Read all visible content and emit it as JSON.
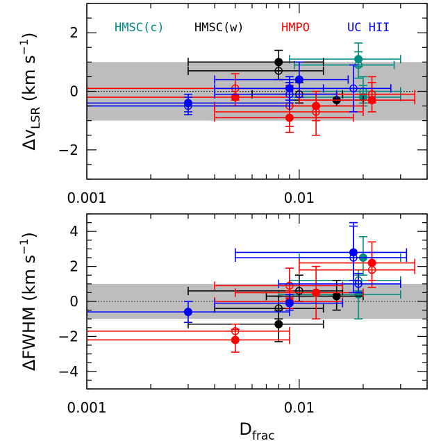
{
  "chart_data": [
    {
      "type": "scatter",
      "panel": "top",
      "xlabel": "",
      "ylabel": "ΔvLSR (km s−1)",
      "ylabel_parts": {
        "delta": "Δv",
        "sub": "LSR",
        "units_open": " (km s",
        "sup": "−1",
        "units_close": ")"
      },
      "xscale": "log",
      "xlim": [
        0.001,
        0.04
      ],
      "ylim": [
        -3,
        3
      ],
      "x_tick_labels": [
        "0.001",
        "0.01"
      ],
      "y_ticks": [
        -2,
        0,
        2
      ],
      "y_tick_labels": [
        "−2",
        "0",
        "2"
      ],
      "shaded_band": [
        -1,
        1
      ],
      "reference_line": 0,
      "legend": [
        {
          "label": "HMSC(c)",
          "color": "#008b80"
        },
        {
          "label": "HMSC(w)",
          "color": "#000000"
        },
        {
          "label": "HMPO",
          "color": "#ff0000"
        },
        {
          "label": "UC HII",
          "color": "#0000ff"
        }
      ],
      "series": [
        {
          "name": "HMSC(c)",
          "color": "#008b80",
          "points": [
            {
              "x": 0.019,
              "y": 1.1,
              "xlo": 0.009,
              "xhi": 0.03,
              "ylo": 0.85,
              "yhi": 1.65,
              "filled": true
            },
            {
              "x": 0.019,
              "y": 0.9,
              "xlo": 0.0095,
              "xhi": 0.028,
              "ylo": 0.45,
              "yhi": 1.35,
              "filled": false
            },
            {
              "x": 0.02,
              "y": -0.2,
              "xlo": 0.009,
              "xhi": 0.03,
              "ylo": -0.5,
              "yhi": 0.2,
              "filled": true
            },
            {
              "x": 0.02,
              "y": 0.0,
              "xlo": 0.01,
              "xhi": 0.03,
              "ylo": -0.4,
              "yhi": 0.5,
              "filled": false
            }
          ]
        },
        {
          "name": "HMSC(w)",
          "color": "#000000",
          "points": [
            {
              "x": 0.008,
              "y": 1.0,
              "xlo": 0.003,
              "xhi": 0.013,
              "ylo": 0.7,
              "yhi": 1.4,
              "filled": true
            },
            {
              "x": 0.008,
              "y": 0.7,
              "xlo": 0.003,
              "xhi": 0.013,
              "ylo": 0.4,
              "yhi": 1.0,
              "filled": false
            },
            {
              "x": 0.01,
              "y": -0.1,
              "xlo": 0.006,
              "xhi": 0.016,
              "ylo": -0.4,
              "yhi": 0.3,
              "filled": false
            },
            {
              "x": 0.015,
              "y": -0.3,
              "xlo": 0.009,
              "xhi": 0.02,
              "ylo": -0.5,
              "yhi": -0.1,
              "filled": true
            }
          ]
        },
        {
          "name": "HMPO",
          "color": "#ff0000",
          "points": [
            {
              "x": 0.005,
              "y": 0.1,
              "xlo": 0.001,
              "xhi": 0.01,
              "ylo": -0.3,
              "yhi": 0.6,
              "filled": false
            },
            {
              "x": 0.005,
              "y": -0.2,
              "xlo": 0.001,
              "xhi": 0.009,
              "ylo": -0.5,
              "yhi": 0.1,
              "filled": true
            },
            {
              "x": 0.009,
              "y": -0.9,
              "xlo": 0.004,
              "xhi": 0.018,
              "ylo": -1.4,
              "yhi": -0.5,
              "filled": true
            },
            {
              "x": 0.009,
              "y": -0.5,
              "xlo": 0.004,
              "xhi": 0.018,
              "ylo": -1.2,
              "yhi": 0.2,
              "filled": false
            },
            {
              "x": 0.012,
              "y": -0.5,
              "xlo": 0.004,
              "xhi": 0.02,
              "ylo": -1.0,
              "yhi": 0.0,
              "filled": true
            },
            {
              "x": 0.012,
              "y": -0.7,
              "xlo": 0.004,
              "xhi": 0.02,
              "ylo": -1.5,
              "yhi": -0.1,
              "filled": false
            },
            {
              "x": 0.022,
              "y": -0.1,
              "xlo": 0.01,
              "xhi": 0.035,
              "ylo": -0.4,
              "yhi": 0.3,
              "filled": false
            },
            {
              "x": 0.022,
              "y": -0.3,
              "xlo": 0.01,
              "xhi": 0.035,
              "ylo": -0.7,
              "yhi": 0.5,
              "filled": true
            }
          ]
        },
        {
          "name": "UC HII",
          "color": "#0000ff",
          "points": [
            {
              "x": 0.003,
              "y": -0.4,
              "xlo": 0.001,
              "xhi": 0.009,
              "ylo": -0.7,
              "yhi": -0.1,
              "filled": true
            },
            {
              "x": 0.003,
              "y": -0.5,
              "xlo": 0.001,
              "xhi": 0.009,
              "ylo": -0.8,
              "yhi": -0.2,
              "filled": false
            },
            {
              "x": 0.009,
              "y": 0.1,
              "xlo": 0.004,
              "xhi": 0.013,
              "ylo": -0.3,
              "yhi": 0.5,
              "filled": true
            },
            {
              "x": 0.009,
              "y": -0.1,
              "xlo": 0.004,
              "xhi": 0.015,
              "ylo": -0.4,
              "yhi": 0.3,
              "filled": false
            },
            {
              "x": 0.01,
              "y": 0.4,
              "xlo": 0.004,
              "xhi": 0.017,
              "ylo": -0.2,
              "yhi": 1.0,
              "filled": true
            },
            {
              "x": 0.018,
              "y": 0.1,
              "xlo": 0.009,
              "xhi": 0.027,
              "ylo": -0.7,
              "yhi": 0.9,
              "filled": false
            }
          ]
        }
      ]
    },
    {
      "type": "scatter",
      "panel": "bottom",
      "xlabel": "Dfrac",
      "xlabel_parts": {
        "base": "D",
        "sub": "frac"
      },
      "ylabel": "ΔFWHM (km s−1)",
      "ylabel_parts": {
        "delta": "ΔFWHM",
        "units_open": " (km s",
        "sup": "−1",
        "units_close": ")"
      },
      "xscale": "log",
      "xlim": [
        0.001,
        0.04
      ],
      "ylim": [
        -5,
        5
      ],
      "x_tick_labels": [
        "0.001",
        "0.01"
      ],
      "y_ticks": [
        -4,
        -2,
        0,
        2,
        4
      ],
      "y_tick_labels": [
        "−4",
        "−2",
        "0",
        "2",
        "4"
      ],
      "shaded_band": [
        -1,
        1
      ],
      "reference_line": 0,
      "series": [
        {
          "name": "HMSC(c)",
          "color": "#008b80",
          "points": [
            {
              "x": 0.02,
              "y": 2.5,
              "xlo": 0.01,
              "xhi": 0.03,
              "ylo": 1.5,
              "yhi": 3.7,
              "filled": true
            },
            {
              "x": 0.019,
              "y": 1.2,
              "xlo": 0.009,
              "xhi": 0.03,
              "ylo": 0.6,
              "yhi": 1.8,
              "filled": false
            },
            {
              "x": 0.019,
              "y": 0.4,
              "xlo": 0.008,
              "xhi": 0.03,
              "ylo": -1.0,
              "yhi": 1.5,
              "filled": true
            }
          ]
        },
        {
          "name": "HMSC(w)",
          "color": "#000000",
          "points": [
            {
              "x": 0.008,
              "y": -1.3,
              "xlo": 0.003,
              "xhi": 0.013,
              "ylo": -2.3,
              "yhi": -0.5,
              "filled": true
            },
            {
              "x": 0.008,
              "y": -0.4,
              "xlo": 0.004,
              "xhi": 0.013,
              "ylo": -1.0,
              "yhi": 0.3,
              "filled": false
            },
            {
              "x": 0.01,
              "y": 0.6,
              "xlo": 0.003,
              "xhi": 0.016,
              "ylo": 0.0,
              "yhi": 1.5,
              "filled": false
            },
            {
              "x": 0.015,
              "y": 0.3,
              "xlo": 0.007,
              "xhi": 0.02,
              "ylo": -0.5,
              "yhi": 1.2,
              "filled": true
            }
          ]
        },
        {
          "name": "HMPO",
          "color": "#ff0000",
          "points": [
            {
              "x": 0.005,
              "y": -1.7,
              "xlo": 0.001,
              "xhi": 0.009,
              "ylo": -2.2,
              "yhi": -1.3,
              "filled": false
            },
            {
              "x": 0.005,
              "y": -2.2,
              "xlo": 0.001,
              "xhi": 0.009,
              "ylo": -2.9,
              "yhi": -1.6,
              "filled": true
            },
            {
              "x": 0.009,
              "y": 0.9,
              "xlo": 0.004,
              "xhi": 0.016,
              "ylo": 0.2,
              "yhi": 1.9,
              "filled": false
            },
            {
              "x": 0.009,
              "y": 0.0,
              "xlo": 0.004,
              "xhi": 0.016,
              "ylo": -0.4,
              "yhi": 0.6,
              "filled": true
            },
            {
              "x": 0.012,
              "y": 0.5,
              "xlo": 0.005,
              "xhi": 0.02,
              "ylo": -1.0,
              "yhi": 2.0,
              "filled": true
            },
            {
              "x": 0.022,
              "y": 2.2,
              "xlo": 0.01,
              "xhi": 0.035,
              "ylo": 1.2,
              "yhi": 3.4,
              "filled": true
            },
            {
              "x": 0.022,
              "y": 1.8,
              "xlo": 0.01,
              "xhi": 0.035,
              "ylo": 0.8,
              "yhi": 2.8,
              "filled": false
            }
          ]
        },
        {
          "name": "UC HII",
          "color": "#0000ff",
          "points": [
            {
              "x": 0.003,
              "y": -0.6,
              "xlo": 0.001,
              "xhi": 0.009,
              "ylo": -1.2,
              "yhi": 0.0,
              "filled": true
            },
            {
              "x": 0.009,
              "y": -0.1,
              "xlo": 0.004,
              "xhi": 0.016,
              "ylo": -0.5,
              "yhi": 0.4,
              "filled": true
            },
            {
              "x": 0.018,
              "y": 2.8,
              "xlo": 0.005,
              "xhi": 0.032,
              "ylo": 1.2,
              "yhi": 4.5,
              "filled": true
            },
            {
              "x": 0.018,
              "y": 2.5,
              "xlo": 0.005,
              "xhi": 0.032,
              "ylo": 0.5,
              "yhi": 4.3,
              "filled": false
            },
            {
              "x": 0.019,
              "y": 1.0,
              "xlo": 0.008,
              "xhi": 0.03,
              "ylo": 0.5,
              "yhi": 1.6,
              "filled": false
            }
          ]
        }
      ]
    }
  ]
}
